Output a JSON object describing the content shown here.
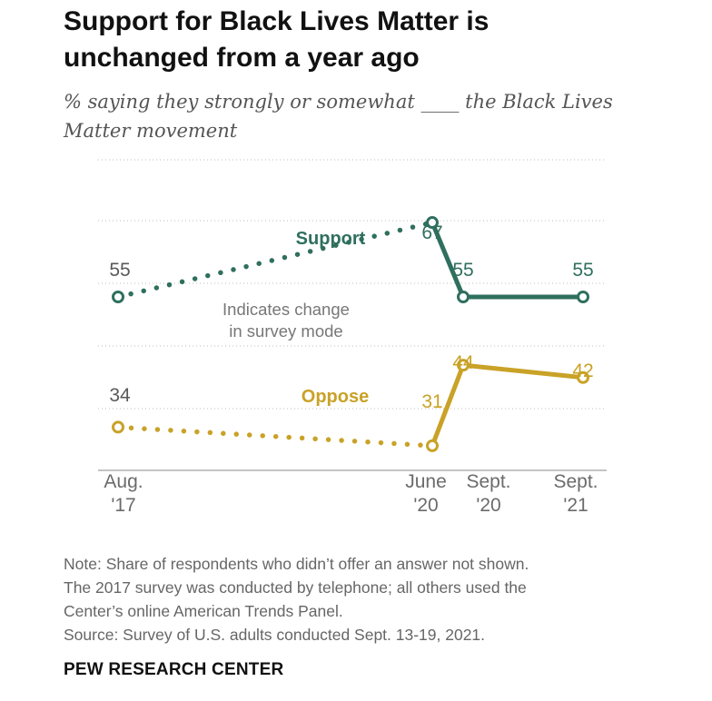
{
  "header": {
    "title_line1": "Support for Black Lives Matter is",
    "title_line2": "unchanged from a year ago",
    "subtitle_line1": "% saying they strongly or somewhat ____ the Black Lives",
    "subtitle_line2": "Matter movement"
  },
  "chart_data": {
    "type": "line",
    "categories": [
      "Aug. '17",
      "June '20",
      "Sept. '20",
      "Sept. '21"
    ],
    "x_ticks": [
      {
        "line1": "Aug.",
        "line2": "'17"
      },
      {
        "line1": "June",
        "line2": "'20"
      },
      {
        "line1": "Sept.",
        "line2": "'20"
      },
      {
        "line1": "Sept.",
        "line2": "'21"
      }
    ],
    "series": [
      {
        "name": "Support",
        "values": [
          55,
          67,
          55,
          55
        ],
        "color": "#2f6f5e"
      },
      {
        "name": "Oppose",
        "values": [
          34,
          31,
          44,
          42
        ],
        "color": "#c9a227"
      }
    ],
    "annotation": {
      "line1": "Indicates change",
      "line2": "in survey mode"
    },
    "line_style": "dotted between Aug. '17 and June '20, solid afterward",
    "grid": true,
    "grid_style": "dotted horizontal",
    "xlabel": "",
    "ylabel": ""
  },
  "notes": {
    "line1": "Note: Share of respondents who didn’t offer an answer not shown.",
    "line2": "The 2017 survey was conducted by telephone; all others used the",
    "line3": "Center’s online American Trends Panel.",
    "line4": "Source: Survey of U.S. adults conducted Sept. 13-19, 2021."
  },
  "footer": {
    "source_org": "PEW RESEARCH CENTER"
  }
}
